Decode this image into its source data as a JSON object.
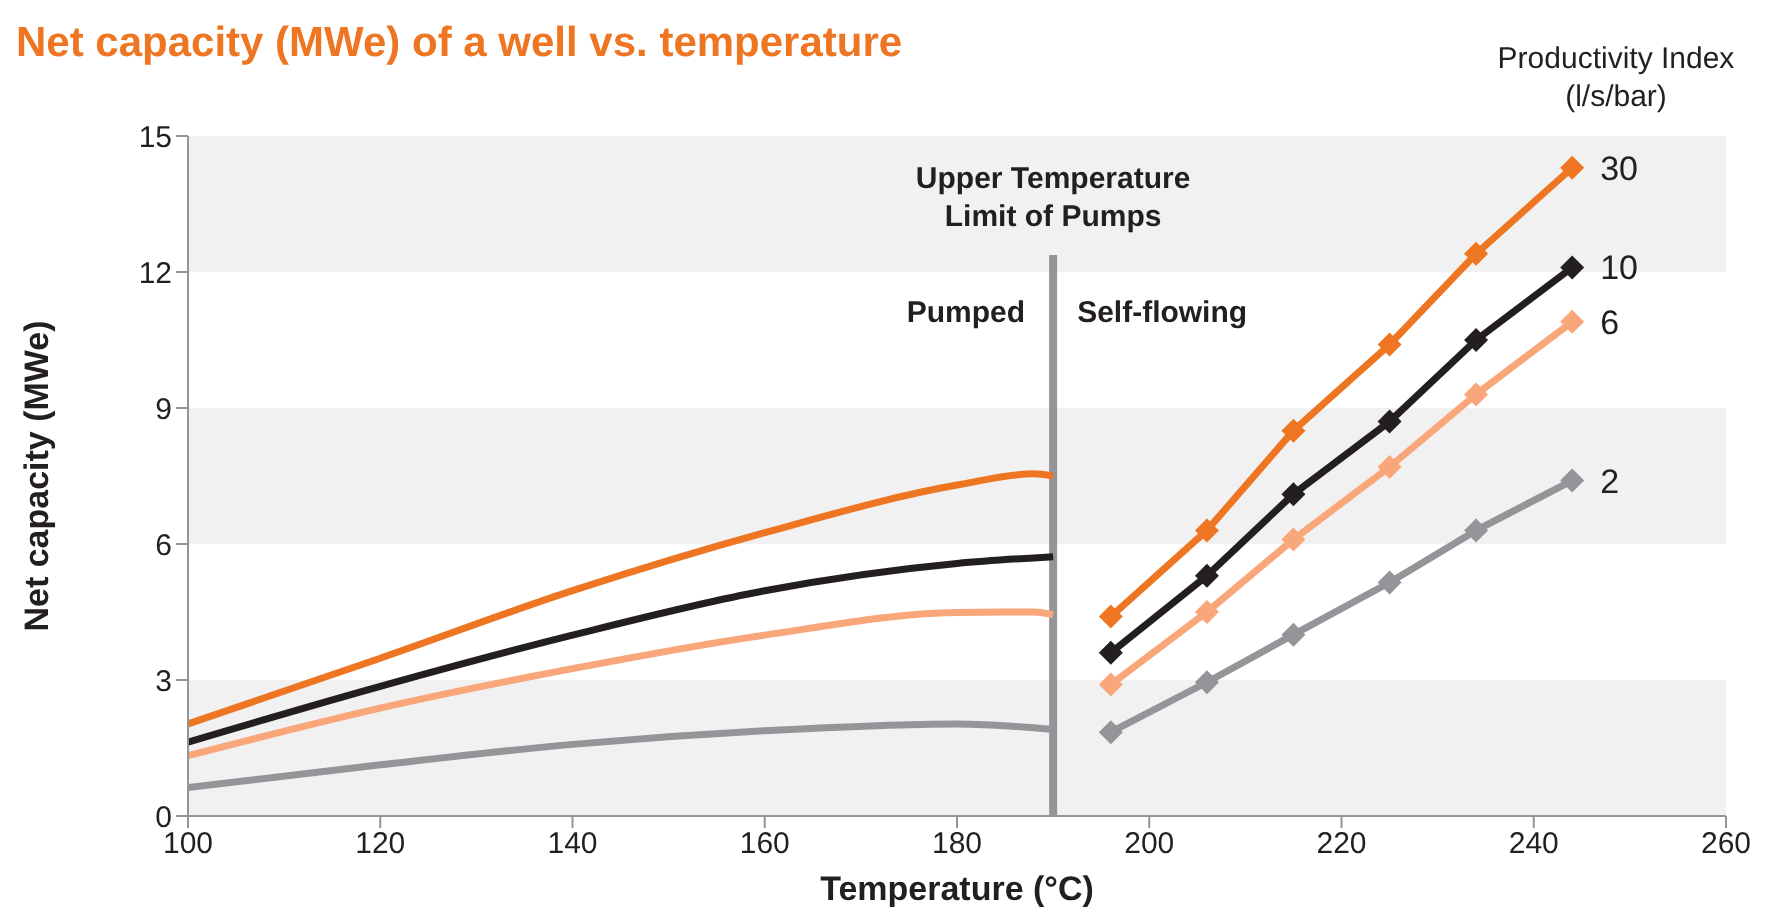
{
  "chart_data": {
    "type": "line",
    "title": "Net capacity (MWe) of a well vs. temperature",
    "xlabel": "Temperature (°C)",
    "ylabel": "Net capacity (MWe)",
    "legend_title": "Productivity Index (l/s/bar)",
    "bands": [
      {
        "axis": "y",
        "from": 0,
        "to": 3,
        "color": "#f1f1f1"
      },
      {
        "axis": "y",
        "from": 6,
        "to": 9,
        "color": "#f1f1f1"
      },
      {
        "axis": "y",
        "from": 12,
        "to": 15,
        "color": "#f1f1f1"
      }
    ],
    "xlim": [
      100,
      260
    ],
    "xticks": [
      100,
      120,
      140,
      160,
      180,
      200,
      220,
      240,
      260
    ],
    "ylim": [
      0,
      15
    ],
    "yticks": [
      0,
      3,
      6,
      9,
      12,
      15
    ],
    "ref_lines": [
      {
        "axis": "x",
        "value": 190,
        "label": "Upper Temperature Limit of Pumps",
        "color": "#939598"
      }
    ],
    "annotations": [
      "Pumped",
      "Self-flowing"
    ],
    "series": [
      {
        "color": "#ee7623",
        "marker": "none",
        "x": [
          100,
          120,
          140,
          160,
          180,
          188,
          190
        ],
        "values": [
          2.03,
          3.48,
          4.97,
          6.25,
          7.3,
          7.55,
          7.5
        ]
      },
      {
        "color": "#231f20",
        "marker": "none",
        "x": [
          100,
          120,
          140,
          160,
          180,
          190
        ],
        "values": [
          1.63,
          2.86,
          3.99,
          4.97,
          5.57,
          5.72
        ]
      },
      {
        "color": "#f9a77a",
        "marker": "none",
        "x": [
          100,
          120,
          140,
          160,
          180,
          188,
          190
        ],
        "values": [
          1.33,
          2.38,
          3.25,
          3.99,
          4.49,
          4.5,
          4.44
        ]
      },
      {
        "color": "#939598",
        "marker": "none",
        "x": [
          100,
          120,
          140,
          160,
          180,
          190
        ],
        "values": [
          0.63,
          1.13,
          1.58,
          1.88,
          2.03,
          1.91
        ]
      },
      {
        "name": "30",
        "color": "#ee7623",
        "marker": "diamond",
        "x": [
          196,
          206,
          215,
          225,
          234,
          244
        ],
        "values": [
          4.4,
          6.3,
          8.5,
          10.4,
          12.4,
          14.3
        ]
      },
      {
        "name": "10",
        "color": "#231f20",
        "marker": "diamond",
        "x": [
          196,
          206,
          215,
          225,
          234,
          244
        ],
        "values": [
          3.6,
          5.3,
          7.1,
          8.7,
          10.5,
          12.1
        ]
      },
      {
        "name": "6",
        "color": "#f9a77a",
        "marker": "diamond",
        "x": [
          196,
          206,
          215,
          225,
          234,
          244
        ],
        "values": [
          2.9,
          4.5,
          6.1,
          7.7,
          9.3,
          10.9
        ]
      },
      {
        "name": "2",
        "color": "#939598",
        "marker": "diamond",
        "x": [
          196,
          206,
          215,
          225,
          234,
          244
        ],
        "values": [
          1.85,
          2.95,
          4.0,
          5.15,
          6.3,
          7.4
        ]
      }
    ]
  }
}
